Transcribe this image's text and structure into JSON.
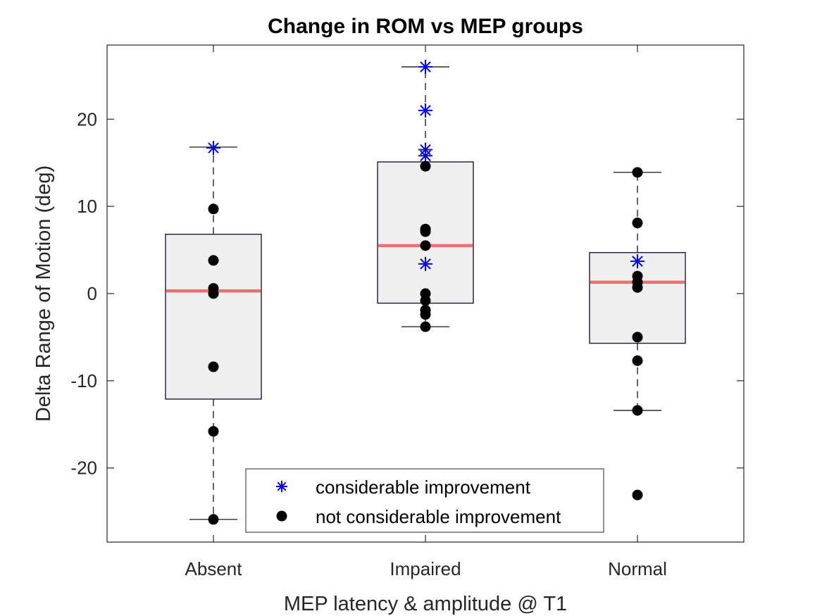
{
  "chart_data": {
    "type": "box",
    "title": "Change in ROM vs MEP groups",
    "xlabel": "MEP latency & amplitude @ T1",
    "ylabel": "Delta Range of Motion (deg)",
    "ylim": [
      -28.5,
      28.5
    ],
    "yticks": [
      -20,
      -10,
      0,
      10,
      20
    ],
    "ytick_labels": [
      "-20",
      "-10",
      "0",
      "10",
      "20"
    ],
    "categories": [
      "Absent",
      "Impaired",
      "Normal"
    ],
    "grid": false,
    "legend_position": "bottom-center",
    "colors": {
      "box_fill": "#efefef",
      "box_edge": "#1a1a3a",
      "median": "#ee6f6f",
      "considerable": "#0000ff",
      "not_considerable": "#000000"
    },
    "boxes": [
      {
        "category": "Absent",
        "q1": -12.1,
        "median": 0.3,
        "q3": 6.8,
        "whisker_low": -25.9,
        "whisker_high": 16.8
      },
      {
        "category": "Impaired",
        "q1": -1.1,
        "median": 5.5,
        "q3": 15.1,
        "whisker_low": -3.8,
        "whisker_high": 26.0
      },
      {
        "category": "Normal",
        "q1": -5.7,
        "median": 1.3,
        "q3": 4.7,
        "whisker_low": -13.4,
        "whisker_high": 13.9
      }
    ],
    "series": [
      {
        "name": "considerable improvement",
        "marker": "asterisk",
        "points": [
          {
            "category": "Absent",
            "y": 16.7
          },
          {
            "category": "Impaired",
            "y": 26.0
          },
          {
            "category": "Impaired",
            "y": 21.0
          },
          {
            "category": "Impaired",
            "y": 16.5
          },
          {
            "category": "Impaired",
            "y": 15.8
          },
          {
            "category": "Impaired",
            "y": 3.4
          },
          {
            "category": "Normal",
            "y": 3.7
          }
        ]
      },
      {
        "name": "not considerable improvement",
        "marker": "dot",
        "points": [
          {
            "category": "Absent",
            "y": 9.7
          },
          {
            "category": "Absent",
            "y": 3.8
          },
          {
            "category": "Absent",
            "y": 0.6
          },
          {
            "category": "Absent",
            "y": 0.0
          },
          {
            "category": "Absent",
            "y": -8.4
          },
          {
            "category": "Absent",
            "y": -15.8
          },
          {
            "category": "Absent",
            "y": -25.9
          },
          {
            "category": "Impaired",
            "y": 14.6
          },
          {
            "category": "Impaired",
            "y": 7.4
          },
          {
            "category": "Impaired",
            "y": 7.1
          },
          {
            "category": "Impaired",
            "y": 5.5
          },
          {
            "category": "Impaired",
            "y": 0.0
          },
          {
            "category": "Impaired",
            "y": -0.8
          },
          {
            "category": "Impaired",
            "y": -1.9
          },
          {
            "category": "Impaired",
            "y": -2.4
          },
          {
            "category": "Impaired",
            "y": -3.8
          },
          {
            "category": "Normal",
            "y": 13.9
          },
          {
            "category": "Normal",
            "y": 8.1
          },
          {
            "category": "Normal",
            "y": 2.0
          },
          {
            "category": "Normal",
            "y": 1.3
          },
          {
            "category": "Normal",
            "y": 0.7
          },
          {
            "category": "Normal",
            "y": -5.0
          },
          {
            "category": "Normal",
            "y": -7.7
          },
          {
            "category": "Normal",
            "y": -13.4
          },
          {
            "category": "Normal",
            "y": -23.1
          }
        ]
      }
    ]
  }
}
